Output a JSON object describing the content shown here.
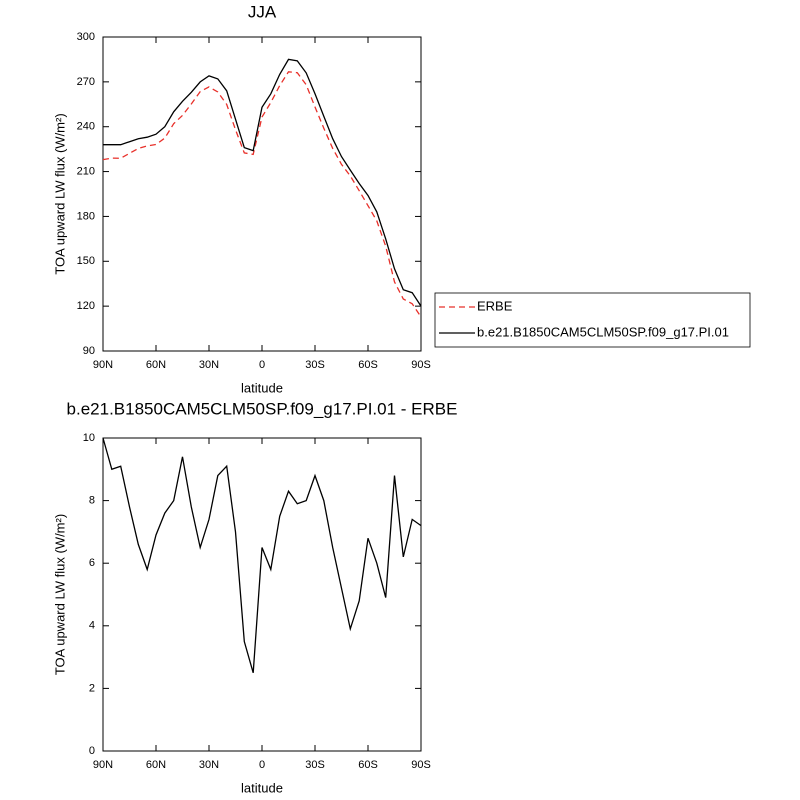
{
  "chart_data": [
    {
      "type": "line",
      "title": "JJA",
      "xlabel": "latitude",
      "ylabel": "TOA upward LW flux (W/m²)",
      "x": [
        90,
        85,
        80,
        75,
        70,
        65,
        60,
        55,
        50,
        45,
        40,
        35,
        30,
        25,
        20,
        15,
        10,
        5,
        0,
        -5,
        -10,
        -15,
        -20,
        -25,
        -30,
        -35,
        -40,
        -45,
        -50,
        -55,
        -60,
        -65,
        -70,
        -75,
        -80,
        -85,
        -90
      ],
      "xlim": [
        90,
        -90
      ],
      "xticks": [
        {
          "value": 90,
          "label": "90N"
        },
        {
          "value": 60,
          "label": "60N"
        },
        {
          "value": 30,
          "label": "30N"
        },
        0,
        {
          "value": -30,
          "label": "30S"
        },
        {
          "value": -60,
          "label": "60S"
        },
        {
          "value": -90,
          "label": "90S"
        }
      ],
      "ylim": [
        90,
        300
      ],
      "yticks": [
        90,
        120,
        150,
        180,
        210,
        240,
        270,
        300
      ],
      "legend": "right",
      "series": [
        {
          "name": "ERBE",
          "color": "#e8302a",
          "dashed": true,
          "values": [
            218,
            219,
            218.9,
            222.2,
            225.4,
            227.2,
            228.1,
            232.4,
            242,
            247.6,
            255.2,
            263.5,
            266.6,
            263.2,
            254.9,
            238,
            222.5,
            221.5,
            246.5,
            256.2,
            267.5,
            276.7,
            276.1,
            268,
            253.2,
            239,
            225.5,
            214.8,
            207.1,
            197.2,
            187.2,
            177,
            160.1,
            136.2,
            124.8,
            121.6,
            112.8
          ]
        },
        {
          "name": "b.e21.B1850CAM5CLM50SP.f09_g17.PI.01",
          "color": "#000000",
          "dashed": false,
          "values": [
            228,
            228,
            228,
            230,
            232,
            233,
            235,
            240,
            250,
            257,
            263,
            270,
            274,
            272,
            264,
            245,
            226,
            224,
            253,
            262,
            275,
            285,
            284,
            276,
            262,
            247,
            232,
            220,
            211,
            202,
            194,
            183,
            165,
            145,
            131,
            129,
            120
          ]
        }
      ]
    },
    {
      "type": "line",
      "title": "b.e21.B1850CAM5CLM50SP.f09_g17.PI.01 - ERBE",
      "xlabel": "latitude",
      "ylabel": "TOA upward LW flux (W/m²)",
      "x": [
        90,
        85,
        80,
        75,
        70,
        65,
        60,
        55,
        50,
        45,
        40,
        35,
        30,
        25,
        20,
        15,
        10,
        5,
        0,
        -5,
        -10,
        -15,
        -20,
        -25,
        -30,
        -35,
        -40,
        -45,
        -50,
        -55,
        -60,
        -65,
        -70,
        -75,
        -80,
        -85,
        -90
      ],
      "xlim": [
        90,
        -90
      ],
      "xticks": [
        {
          "value": 90,
          "label": "90N"
        },
        {
          "value": 60,
          "label": "60N"
        },
        {
          "value": 30,
          "label": "30N"
        },
        0,
        {
          "value": -30,
          "label": "30S"
        },
        {
          "value": -60,
          "label": "60S"
        },
        {
          "value": -90,
          "label": "90S"
        }
      ],
      "ylim": [
        0,
        10
      ],
      "yticks": [
        0,
        2,
        4,
        6,
        8,
        10
      ],
      "color": "#000000",
      "values": [
        10,
        9.0,
        9.1,
        7.8,
        6.6,
        5.8,
        6.9,
        7.6,
        8.0,
        9.4,
        7.8,
        6.5,
        7.4,
        8.8,
        9.1,
        7.0,
        3.5,
        2.5,
        6.5,
        5.8,
        7.5,
        8.3,
        7.9,
        8.0,
        8.8,
        8.0,
        6.5,
        5.2,
        3.9,
        4.8,
        6.8,
        6.0,
        4.9,
        8.8,
        6.2,
        7.4,
        7.2
      ]
    }
  ]
}
